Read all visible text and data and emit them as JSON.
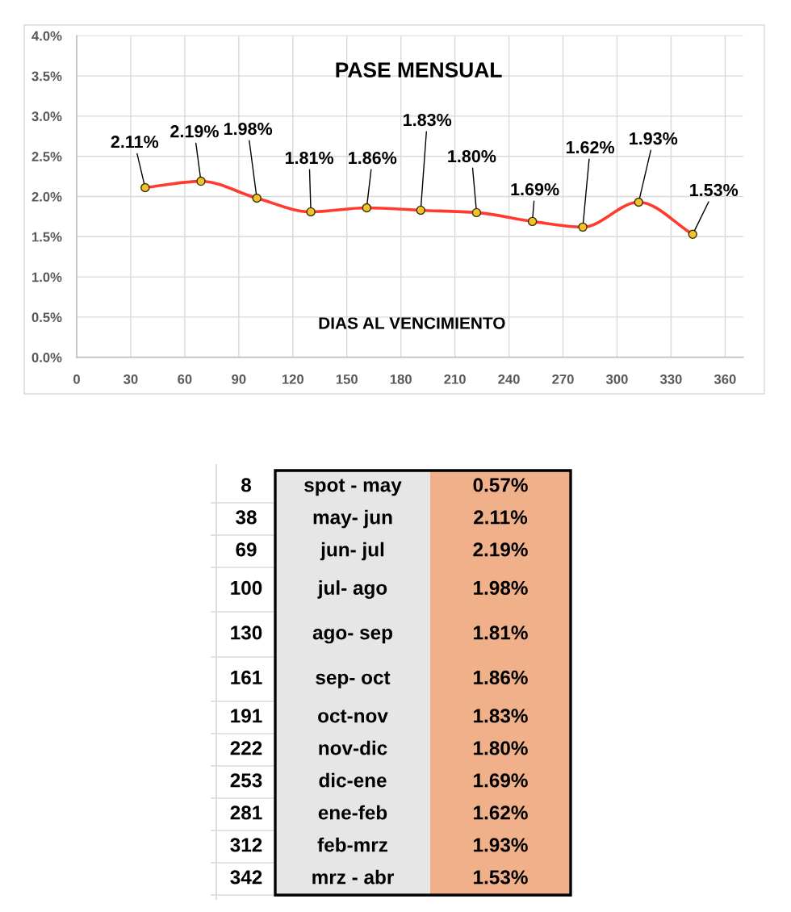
{
  "chart_data": [
    {
      "type": "line",
      "title": "PASE MENSUAL",
      "xlabel": "DIAS AL VENCIMIENTO",
      "x": [
        38,
        69,
        100,
        130,
        161,
        191,
        222,
        253,
        281,
        312,
        342
      ],
      "values": [
        2.11,
        2.19,
        1.98,
        1.81,
        1.86,
        1.83,
        1.8,
        1.69,
        1.62,
        1.93,
        1.53
      ],
      "value_labels": [
        "2.11%",
        "2.19%",
        "1.98%",
        "1.81%",
        "1.86%",
        "1.83%",
        "1.80%",
        "1.69%",
        "1.62%",
        "1.93%",
        "1.53%"
      ],
      "color": "#ff3b2f",
      "marker": "circle",
      "line_style": "solid",
      "grid": true,
      "xlim": [
        0,
        370
      ],
      "xticks": [
        0,
        30,
        60,
        90,
        120,
        150,
        180,
        210,
        240,
        270,
        300,
        330,
        360
      ],
      "ylim": [
        0,
        4
      ],
      "yticks": [
        {
          "value": 0,
          "label": "0.0%"
        },
        {
          "value": 0.5,
          "label": "0.5%"
        },
        {
          "value": 1,
          "label": "1.0%"
        },
        {
          "value": 1.5,
          "label": "1.5%"
        },
        {
          "value": 2,
          "label": "2.0%"
        },
        {
          "value": 2.5,
          "label": "2.5%"
        },
        {
          "value": 3,
          "label": "3.0%"
        },
        {
          "value": 3.5,
          "label": "3.5%"
        },
        {
          "value": 4,
          "label": "4.0%"
        }
      ]
    },
    {
      "type": "other",
      "y_categories": [
        "8",
        "38",
        "69",
        "100",
        "130",
        "161",
        "191",
        "222",
        "253",
        "281",
        "312",
        "342"
      ],
      "categories": [
        "spot - may",
        "may- jun",
        "jun- jul",
        "jul- ago",
        "ago- sep",
        "sep- oct",
        "oct-nov",
        "nov-dic",
        "dic-ene",
        "ene-feb",
        "feb-mrz",
        "mrz - abr"
      ],
      "values": [
        0.57,
        2.11,
        2.19,
        1.98,
        1.81,
        1.86,
        1.83,
        1.8,
        1.69,
        1.62,
        1.93,
        1.53
      ],
      "value_labels": [
        "0.57%",
        "2.11%",
        "2.19%",
        "1.98%",
        "1.81%",
        "1.86%",
        "1.83%",
        "1.80%",
        "1.69%",
        "1.62%",
        "1.93%",
        "1.53%"
      ]
    }
  ]
}
